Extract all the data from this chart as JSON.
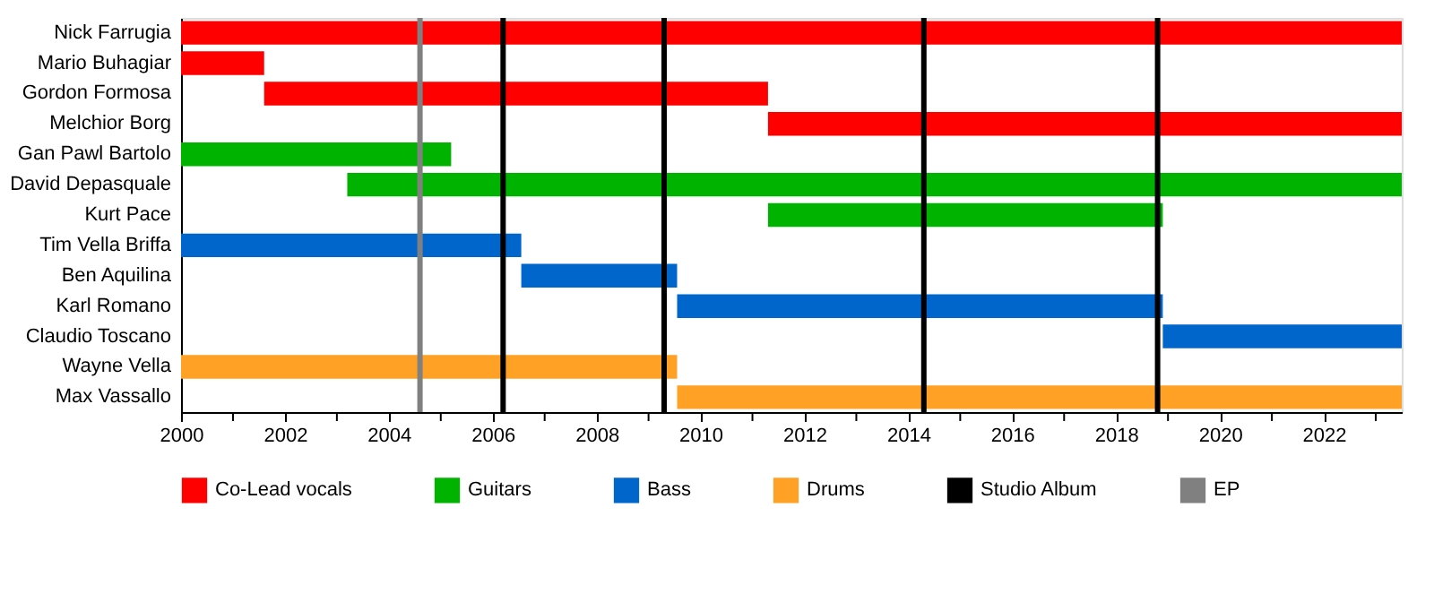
{
  "chart_data": {
    "type": "bar",
    "orientation": "horizontal",
    "categories": [
      "Nick Farrugia",
      "Mario Buhagiar",
      "Gordon Formosa",
      "Melchior Borg",
      "Gan Pawl Bartolo",
      "David Depasquale",
      "Kurt Pace",
      "Tim Vella Briffa",
      "Ben Aquilina",
      "Karl Romano",
      "Claudio Toscano",
      "Wayne Vella",
      "Max Vassallo"
    ],
    "series": [
      {
        "name": "Co-Lead vocals",
        "color": "#ff0000",
        "base": [
          2000,
          2000,
          2001.6,
          2011.3,
          null,
          null,
          null,
          null,
          null,
          null,
          null,
          null,
          null
        ],
        "values": [
          23.5,
          1.6,
          9.7,
          12.2,
          null,
          null,
          null,
          null,
          null,
          null,
          null,
          null,
          null
        ]
      },
      {
        "name": "Guitars",
        "color": "#00b300",
        "base": [
          null,
          null,
          null,
          null,
          2000,
          2003.2,
          2011.3,
          null,
          null,
          null,
          null,
          null,
          null
        ],
        "values": [
          null,
          null,
          null,
          null,
          5.2,
          20.3,
          7.6,
          null,
          null,
          null,
          null,
          null,
          null
        ]
      },
      {
        "name": "Bass",
        "color": "#0066cc",
        "base": [
          null,
          null,
          null,
          null,
          null,
          null,
          null,
          2000,
          2006.55,
          2009.55,
          2018.9,
          null,
          null
        ],
        "values": [
          null,
          null,
          null,
          null,
          null,
          null,
          null,
          6.55,
          3.0,
          9.35,
          4.6,
          null,
          null
        ]
      },
      {
        "name": "Drums",
        "color": "#ffa125",
        "base": [
          null,
          null,
          null,
          null,
          null,
          null,
          null,
          null,
          null,
          null,
          null,
          2000,
          2009.55
        ],
        "values": [
          null,
          null,
          null,
          null,
          null,
          null,
          null,
          null,
          null,
          null,
          null,
          9.55,
          13.95
        ]
      }
    ],
    "ref_lines": [
      {
        "axis": "x",
        "value": 2006.2,
        "label": "Studio Album",
        "color": "#000000"
      },
      {
        "axis": "x",
        "value": 2004.6,
        "label": "EP",
        "color": "#808080"
      },
      {
        "axis": "x",
        "value": 2009.3,
        "color": "#000000"
      },
      {
        "axis": "x",
        "value": 2014.3,
        "color": "#000000"
      },
      {
        "axis": "x",
        "value": 2018.8,
        "color": "#000000"
      }
    ],
    "xlim": [
      2000,
      2023.5
    ],
    "xticks": [
      2000,
      {
        "value": 2001,
        "label": null
      },
      2002,
      {
        "value": 2003,
        "label": null
      },
      2004,
      {
        "value": 2005,
        "label": null
      },
      2006,
      {
        "value": 2007,
        "label": null
      },
      2008,
      {
        "value": 2009,
        "label": null
      },
      2010,
      {
        "value": 2011,
        "label": null
      },
      2012,
      {
        "value": 2013,
        "label": null
      },
      2014,
      {
        "value": 2015,
        "label": null
      },
      2016,
      {
        "value": 2017,
        "label": null
      },
      2018,
      {
        "value": 2019,
        "label": null
      },
      2020,
      {
        "value": 2021,
        "label": null
      },
      2022,
      {
        "value": 2023,
        "label": null
      }
    ],
    "grid": false,
    "legend": "bottom"
  }
}
